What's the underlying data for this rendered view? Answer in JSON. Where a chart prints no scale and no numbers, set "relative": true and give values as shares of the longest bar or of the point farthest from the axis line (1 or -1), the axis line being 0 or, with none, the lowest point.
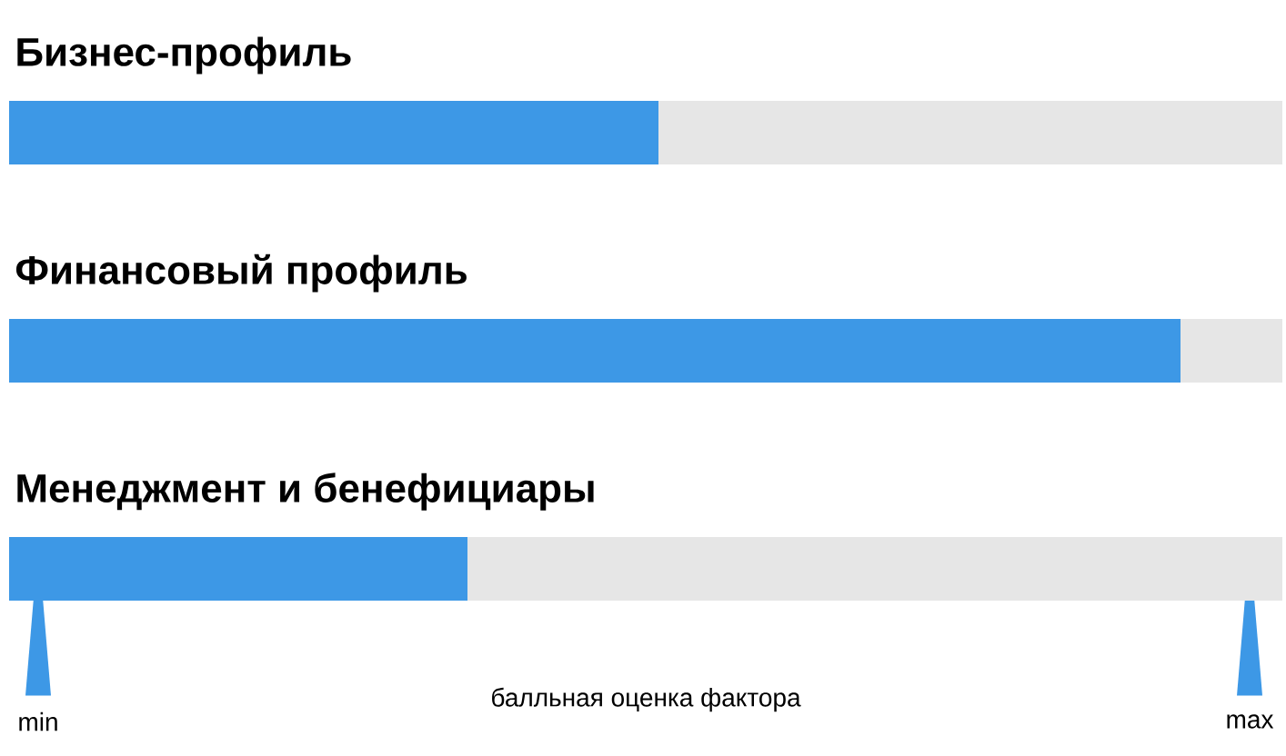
{
  "chart_data": {
    "type": "bar",
    "orientation": "horizontal",
    "stacked": true,
    "relative": true,
    "categories": [
      "Бизнес-профиль",
      "Финансовый профиль",
      "Менеджмент и бенефициары"
    ],
    "series": [
      {
        "color": "#3d98e6",
        "values": [
          0.51,
          0.92,
          0.36
        ]
      },
      {
        "color": "#e6e6e6",
        "values": [
          0.49,
          0.08,
          0.64
        ]
      }
    ],
    "xlabel": "балльная оценка фактора",
    "annotations": [
      "min",
      "max"
    ]
  }
}
